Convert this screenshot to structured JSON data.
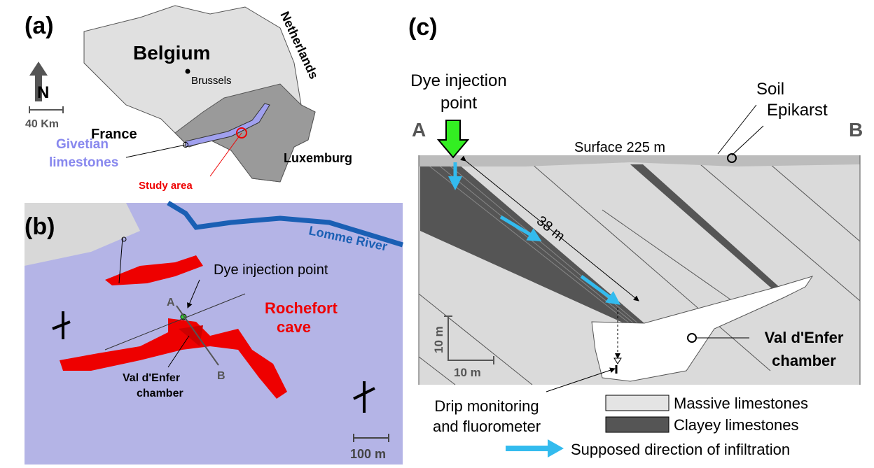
{
  "panel_a": {
    "label": "(a)",
    "country": "Belgium",
    "capital": "Brussels",
    "neighbor_north": "Netherlands",
    "neighbor_south": "France",
    "neighbor_east": "Luxemburg",
    "north": "N",
    "scale": "40 Km",
    "formation": [
      "Givetian",
      "limestones"
    ],
    "study_area": "Study area"
  },
  "panel_b": {
    "label": "(b)",
    "river": "Lomme River",
    "injection": "Dye injection point",
    "point_a": "A",
    "point_b": "B",
    "cave": [
      "Rochefort",
      "cave"
    ],
    "chamber": [
      "Val d'Enfer",
      "chamber"
    ],
    "scale": "100 m"
  },
  "panel_c": {
    "label": "(c)",
    "injection": [
      "Dye injection",
      "point"
    ],
    "soil": "Soil",
    "epikarst": "Epikarst",
    "point_a": "A",
    "point_b": "B",
    "surface": "Surface 225 m",
    "length": "38 m",
    "scale_v": "10 m",
    "scale_h": "10 m",
    "chamber": [
      "Val d'Enfer",
      "chamber"
    ],
    "drip": [
      "Drip monitoring",
      "and fluorometer"
    ],
    "legend": {
      "massive": "Massive limestones",
      "clayey": "Clayey limestones",
      "direction": "Supposed direction of infiltration"
    }
  }
}
